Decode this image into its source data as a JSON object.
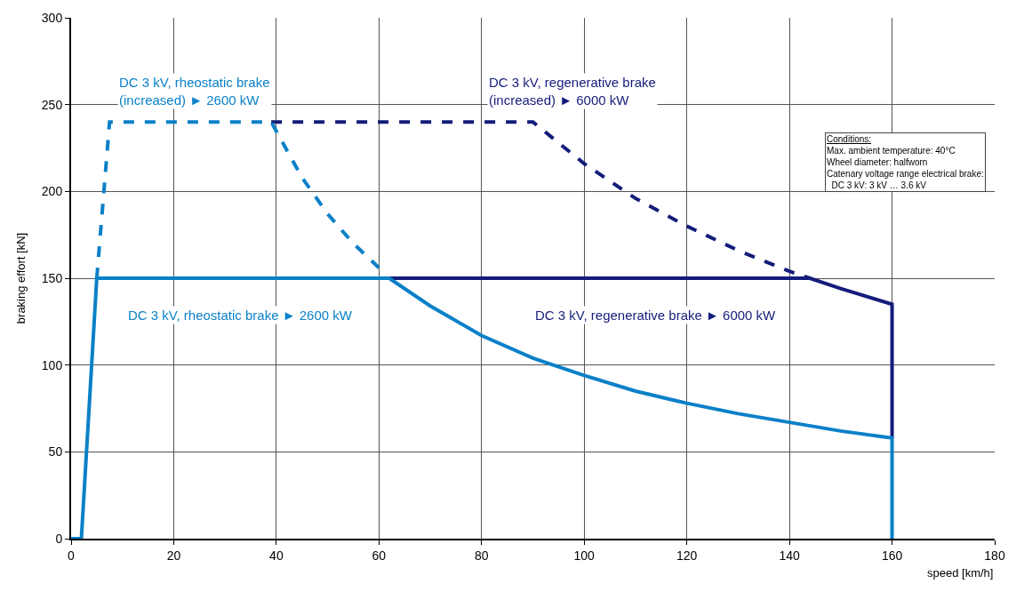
{
  "chart_data": {
    "type": "line",
    "xlabel": "speed [km/h]",
    "ylabel": "braking effort [kN]",
    "xlim": [
      0,
      180
    ],
    "xticks": [
      0,
      20,
      40,
      60,
      80,
      100,
      120,
      140,
      160,
      180
    ],
    "ylim": [
      0,
      300
    ],
    "yticks": [
      0,
      50,
      100,
      150,
      200,
      250,
      300
    ],
    "grid": true,
    "legend": false,
    "marker": "none",
    "series": [
      {
        "name": "DC 3 kV, regenerative brake ► 6000 kW",
        "color": "#141c7a",
        "line_style": "solid",
        "x": [
          62,
          144,
          150,
          160,
          160
        ],
        "values": [
          150,
          150,
          144,
          135,
          58
        ]
      },
      {
        "name": "DC 3 kV, regenerative brake (increased) ► 6000 kW",
        "color": "#141c7a",
        "line_style": "dashed",
        "x": [
          39,
          90,
          100,
          110,
          120,
          130,
          140,
          144
        ],
        "values": [
          240,
          240,
          216,
          196,
          180,
          166,
          154,
          150
        ]
      },
      {
        "name": "DC 3 kV, rheostatic brake ► 2600 kW",
        "color": "#0a80c8",
        "line_style": "solid",
        "x": [
          0,
          2,
          5,
          62,
          70,
          80,
          90,
          100,
          110,
          120,
          130,
          140,
          150,
          160,
          160
        ],
        "values": [
          0,
          0,
          150,
          150,
          134,
          117,
          104,
          94,
          85,
          78,
          72,
          67,
          62,
          58,
          0
        ]
      },
      {
        "name": "DC 3 kV, rheostatic brake (increased) ► 2600 kW",
        "color": "#0a80c8",
        "line_style": "dashed",
        "x": [
          5,
          7.5,
          39,
          45,
          50,
          55,
          60
        ],
        "values": [
          150,
          240,
          240,
          208,
          187,
          170,
          156
        ]
      }
    ],
    "annotations": [
      "Conditions:\nMax. ambient temperature: 40°C\nWheel diameter: halfworn\nCatenary voltage range electrical brake:\n  DC 3 kV: 3 kV … 3.6 kV"
    ]
  }
}
